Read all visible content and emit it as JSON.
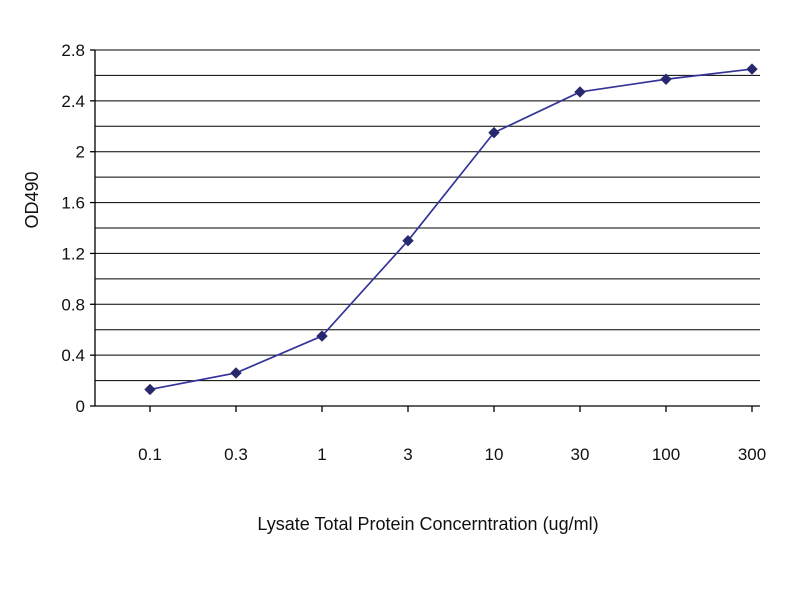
{
  "page": {
    "background": "#ffffff"
  },
  "chart_data": {
    "type": "line",
    "title": "",
    "xlabel": "Lysate Total Protein Concerntration (ug/ml)",
    "ylabel": "OD490",
    "x_scale": "log",
    "x": [
      0.1,
      0.3,
      1,
      3,
      10,
      30,
      100,
      300
    ],
    "x_tick_labels": [
      "0.1",
      "0.3",
      "1",
      "3",
      "10",
      "30",
      "100",
      "300"
    ],
    "series": [
      {
        "name": "OD490",
        "values": [
          0.13,
          0.26,
          0.55,
          1.3,
          2.15,
          2.47,
          2.57,
          2.65
        ]
      }
    ],
    "ylim": [
      0,
      2.8
    ],
    "y_ticks": [
      0,
      0.4,
      0.8,
      1.2,
      1.6,
      2.0,
      2.4,
      2.8
    ],
    "y_tick_labels": [
      "0",
      "0.4",
      "0.8",
      "1.2",
      "1.6",
      "2",
      "2.4",
      "2.8"
    ],
    "grid_interval": 0.2,
    "grid": "horizontal",
    "legend": "none",
    "line_color": "#333399",
    "marker": "diamond",
    "marker_color": "#28286e",
    "axis_color": "#000000",
    "grid_color": "#000000"
  }
}
